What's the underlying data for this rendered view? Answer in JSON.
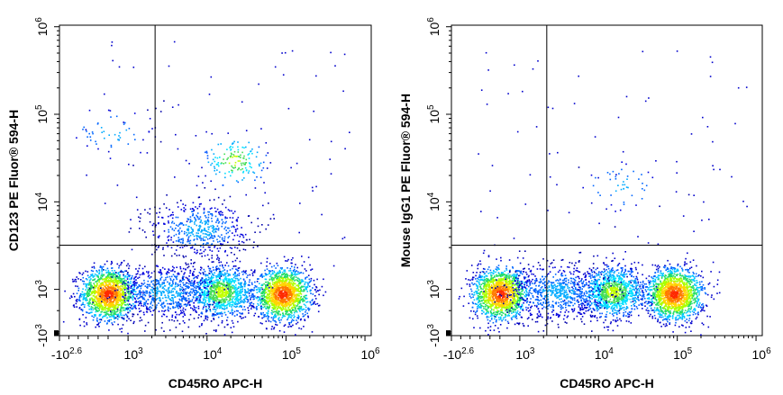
{
  "chart_data": [
    {
      "type": "scatter",
      "style": "pseudocolor density dot plot",
      "xlabel": "CD45RO APC-H",
      "ylabel": "CD123 PE Fluor® 594-H",
      "x_scale": "biexponential",
      "y_scale": "biexponential",
      "x_ticks": [
        {
          "base": "-10",
          "exp": "2.6"
        },
        {
          "base": "10",
          "exp": "3"
        },
        {
          "base": "10",
          "exp": "4"
        },
        {
          "base": "10",
          "exp": "5"
        },
        {
          "base": "10",
          "exp": "6"
        }
      ],
      "y_ticks": [
        {
          "base": "-10",
          "exp": "3"
        },
        {
          "base": "10",
          "exp": "3"
        },
        {
          "base": "10",
          "exp": "4"
        },
        {
          "base": "10",
          "exp": "5"
        },
        {
          "base": "10",
          "exp": "6"
        }
      ],
      "gate": {
        "x": 2200,
        "y": 3200
      },
      "populations": [
        {
          "x": 600,
          "y": 900,
          "density": "high",
          "n": 1400
        },
        {
          "x": 90000,
          "y": 900,
          "density": "high",
          "n": 1500
        },
        {
          "x": 15000,
          "y": 950,
          "density": "medium",
          "n": 1100
        },
        {
          "x": 3000,
          "y": 950,
          "density": "low",
          "n": 700
        },
        {
          "x": 22000,
          "y": 30000,
          "density": "medium",
          "n": 160
        },
        {
          "x": 700,
          "y": 65000,
          "density": "low",
          "n": 60
        },
        {
          "x": 8000,
          "y": 5000,
          "density": "low",
          "n": 500
        }
      ]
    },
    {
      "type": "scatter",
      "style": "pseudocolor density dot plot",
      "xlabel": "CD45RO APC-H",
      "ylabel": "Mouse IgG1 PE Fluor® 594-H",
      "x_scale": "biexponential",
      "y_scale": "biexponential",
      "x_ticks": [
        {
          "base": "-10",
          "exp": "2.6"
        },
        {
          "base": "10",
          "exp": "3"
        },
        {
          "base": "10",
          "exp": "4"
        },
        {
          "base": "10",
          "exp": "5"
        },
        {
          "base": "10",
          "exp": "6"
        }
      ],
      "y_ticks": [
        {
          "base": "-10",
          "exp": "3"
        },
        {
          "base": "10",
          "exp": "3"
        },
        {
          "base": "10",
          "exp": "4"
        },
        {
          "base": "10",
          "exp": "5"
        },
        {
          "base": "10",
          "exp": "6"
        }
      ],
      "gate": {
        "x": 2200,
        "y": 3200
      },
      "populations": [
        {
          "x": 600,
          "y": 900,
          "density": "high",
          "n": 1400
        },
        {
          "x": 90000,
          "y": 900,
          "density": "high",
          "n": 1500
        },
        {
          "x": 15000,
          "y": 950,
          "density": "medium",
          "n": 1100
        },
        {
          "x": 3000,
          "y": 950,
          "density": "low",
          "n": 700
        },
        {
          "x": 20000,
          "y": 15000,
          "density": "low",
          "n": 50
        }
      ]
    }
  ]
}
